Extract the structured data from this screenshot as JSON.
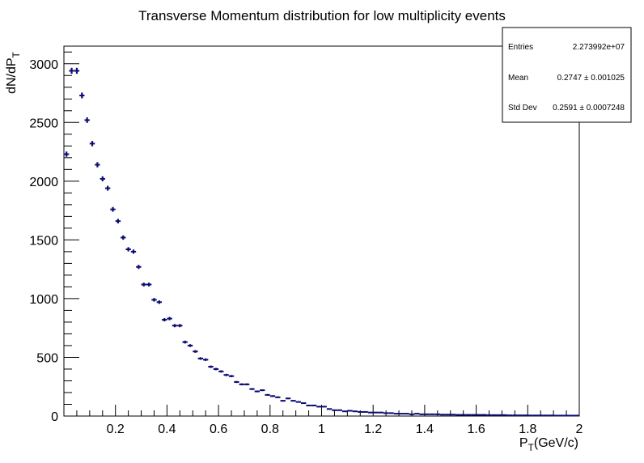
{
  "chart_data": {
    "type": "histogram",
    "title": "Transverse Momentum distribution for low multiplicity events",
    "xlabel": "P_T(GeV/c)",
    "ylabel": "dN/dP_T",
    "xlim": [
      0,
      2
    ],
    "ylim": [
      0,
      3150
    ],
    "x_ticks": [
      0.2,
      0.4,
      0.6,
      0.8,
      1,
      1.2,
      1.4,
      1.6,
      1.8,
      2
    ],
    "x_tick_labels": [
      "0.2",
      "0.4",
      "0.6",
      "0.8",
      "1",
      "1.2",
      "1.4",
      "1.6",
      "1.8",
      "2"
    ],
    "y_ticks": [
      0,
      500,
      1000,
      1500,
      2000,
      2500,
      3000
    ],
    "y_tick_labels": [
      "0",
      "500",
      "1000",
      "1500",
      "2000",
      "2500",
      "3000"
    ],
    "bin_width": 0.02,
    "series": [
      {
        "name": "P_T",
        "color": "#0b0b73",
        "x": [
          0.01,
          0.03,
          0.05,
          0.07,
          0.09,
          0.11,
          0.13,
          0.15,
          0.17,
          0.19,
          0.21,
          0.23,
          0.25,
          0.27,
          0.29,
          0.31,
          0.33,
          0.35,
          0.37,
          0.39,
          0.41,
          0.43,
          0.45,
          0.47,
          0.49,
          0.51,
          0.53,
          0.55,
          0.57,
          0.59,
          0.61,
          0.63,
          0.65,
          0.67,
          0.69,
          0.71,
          0.73,
          0.75,
          0.77,
          0.79,
          0.81,
          0.83,
          0.85,
          0.87,
          0.89,
          0.91,
          0.93,
          0.95,
          0.97,
          0.99,
          1.01,
          1.03,
          1.05,
          1.07,
          1.09,
          1.11,
          1.13,
          1.15,
          1.17,
          1.19,
          1.21,
          1.23,
          1.25,
          1.27,
          1.29,
          1.31,
          1.33,
          1.35,
          1.37,
          1.39,
          1.41,
          1.43,
          1.45,
          1.47,
          1.49,
          1.51,
          1.53,
          1.55,
          1.57,
          1.59,
          1.61,
          1.63,
          1.65,
          1.67,
          1.69,
          1.71,
          1.73,
          1.75,
          1.77,
          1.79,
          1.81,
          1.83,
          1.85,
          1.87,
          1.89,
          1.91,
          1.93,
          1.95,
          1.97,
          1.99
        ],
        "values": [
          2230,
          2940,
          2940,
          2730,
          2520,
          2320,
          2140,
          2020,
          1940,
          1760,
          1660,
          1520,
          1420,
          1400,
          1270,
          1120,
          1120,
          990,
          970,
          820,
          830,
          770,
          770,
          630,
          600,
          550,
          490,
          480,
          420,
          400,
          380,
          350,
          340,
          290,
          270,
          270,
          230,
          210,
          220,
          180,
          170,
          160,
          130,
          150,
          130,
          120,
          110,
          90,
          90,
          80,
          80,
          60,
          50,
          50,
          40,
          45,
          40,
          35,
          35,
          30,
          30,
          30,
          25,
          25,
          20,
          20,
          20,
          15,
          20,
          15,
          15,
          15,
          15,
          12,
          12,
          12,
          10,
          10,
          10,
          10,
          10,
          10,
          8,
          8,
          8,
          8,
          6,
          6,
          6,
          6,
          5,
          5,
          5,
          5,
          5,
          4,
          4,
          4,
          4,
          4
        ]
      }
    ]
  },
  "stats_box": {
    "entries_label": "Entries",
    "entries_value": "2.273992e+07",
    "mean_label": "Mean",
    "mean_value": "0.2747 ± 0.001025",
    "stddev_label": "Std Dev",
    "stddev_value": "0.2591 ± 0.0007248"
  }
}
